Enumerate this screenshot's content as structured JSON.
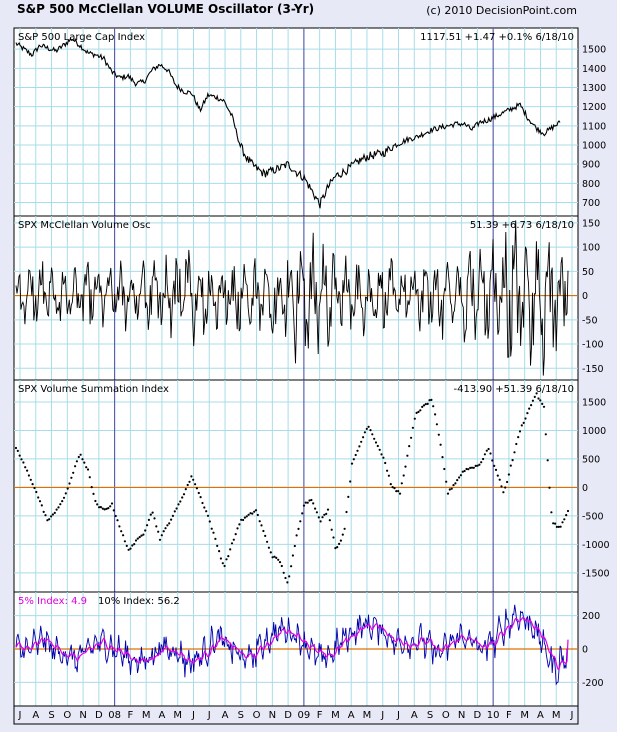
{
  "header": {
    "title": "S&P 500 McClellan VOLUME Oscillator (3-Yr)",
    "copyright": "(c) 2010 DecisionPoint.com"
  },
  "colors": {
    "background": "#e8e9f7",
    "plot_bg": "#ffffff",
    "grid": "#a9dce9",
    "vline": "#4a4aa8",
    "zero_line": "#e07000",
    "price": "#000000",
    "blue": "#0000aa",
    "magenta": "#e000e0"
  },
  "x_axis": {
    "months": [
      "J",
      "A",
      "S",
      "O",
      "N",
      "D",
      "08",
      "F",
      "M",
      "A",
      "M",
      "J",
      "J",
      "A",
      "S",
      "O",
      "N",
      "D",
      "09",
      "F",
      "M",
      "A",
      "M",
      "J",
      "J",
      "A",
      "S",
      "O",
      "N",
      "D",
      "10",
      "F",
      "M",
      "A",
      "M",
      "J"
    ]
  },
  "chart_data": [
    {
      "type": "line",
      "title": "S&P 500 Large Cap Index",
      "readout": "1117.51  +1.47  +0.1%  6/18/10",
      "ylim": [
        640,
        1600
      ],
      "yticks": [
        700,
        800,
        900,
        1000,
        1100,
        1200,
        1300,
        1400,
        1500
      ],
      "ytick_labels": [
        "700",
        "800",
        "900",
        "1000",
        "1100",
        "1200",
        "1300",
        "1400",
        "1500"
      ],
      "anchors": [
        [
          0,
          1530
        ],
        [
          2,
          1470
        ],
        [
          3,
          1520
        ],
        [
          5,
          1490
        ],
        [
          7,
          1555
        ],
        [
          8,
          1520
        ],
        [
          9,
          1480
        ],
        [
          10,
          1470
        ],
        [
          11,
          1450
        ],
        [
          12,
          1380
        ],
        [
          13,
          1350
        ],
        [
          14,
          1360
        ],
        [
          15,
          1320
        ],
        [
          16,
          1330
        ],
        [
          17,
          1390
        ],
        [
          18,
          1420
        ],
        [
          19,
          1390
        ],
        [
          20,
          1310
        ],
        [
          21,
          1280
        ],
        [
          22,
          1270
        ],
        [
          23,
          1180
        ],
        [
          24,
          1260
        ],
        [
          25,
          1250
        ],
        [
          26,
          1230
        ],
        [
          27,
          1150
        ],
        [
          28,
          1000
        ],
        [
          29,
          920
        ],
        [
          30,
          880
        ],
        [
          31,
          850
        ],
        [
          33,
          880
        ],
        [
          34,
          900
        ],
        [
          35,
          860
        ],
        [
          36,
          830
        ],
        [
          37,
          760
        ],
        [
          38,
          690
        ],
        [
          39,
          780
        ],
        [
          40,
          840
        ],
        [
          41,
          860
        ],
        [
          42,
          890
        ],
        [
          43,
          920
        ],
        [
          44,
          940
        ],
        [
          45,
          950
        ],
        [
          46,
          960
        ],
        [
          47,
          990
        ],
        [
          48,
          1010
        ],
        [
          49,
          1030
        ],
        [
          50,
          1040
        ],
        [
          51,
          1060
        ],
        [
          52,
          1080
        ],
        [
          53,
          1090
        ],
        [
          54,
          1100
        ],
        [
          55,
          1110
        ],
        [
          56,
          1110
        ],
        [
          57,
          1080
        ],
        [
          58,
          1120
        ],
        [
          59,
          1130
        ],
        [
          60,
          1150
        ],
        [
          61,
          1170
        ],
        [
          62,
          1190
        ],
        [
          63,
          1210
        ],
        [
          64,
          1140
        ],
        [
          65,
          1090
        ],
        [
          66,
          1060
        ],
        [
          67,
          1090
        ],
        [
          68,
          1117.51
        ]
      ]
    },
    {
      "type": "line",
      "title": "SPX McClellan Volume Osc",
      "readout": "51.39  +6.73  6/18/10",
      "ylim": [
        -170,
        160
      ],
      "yticks": [
        -150,
        -100,
        -50,
        0,
        50,
        100,
        150
      ],
      "ytick_labels": [
        "-150",
        "-100",
        "-50",
        "0",
        "50",
        "100",
        "150"
      ],
      "reference_line": 0,
      "amplitude": [
        60,
        60,
        65,
        70,
        75,
        70,
        65,
        70,
        70,
        65,
        60,
        60,
        55,
        60,
        65,
        70,
        75,
        80,
        85,
        90,
        100,
        95,
        90,
        85,
        80,
        75,
        70,
        75,
        80,
        80,
        80,
        85,
        90,
        100,
        110,
        120,
        125,
        120,
        110,
        100,
        90,
        85,
        80,
        75,
        70,
        75,
        70,
        65,
        60,
        65,
        70,
        75,
        80,
        85,
        90,
        100,
        110,
        115,
        120,
        130,
        140,
        150,
        145,
        140,
        145,
        150,
        140,
        130
      ],
      "last": 51.39
    },
    {
      "type": "scatter",
      "title": "SPX Volume Summation Index",
      "readout": "-413.90  +51.39  6/18/10",
      "ylim": [
        -1800,
        1850
      ],
      "yticks": [
        -1500,
        -1000,
        -500,
        0,
        500,
        1000,
        1500
      ],
      "ytick_labels": [
        "-1500",
        "-1000",
        "-500",
        "0",
        "500",
        "1000",
        "1500"
      ],
      "reference_line": 0,
      "anchors": [
        [
          0,
          700
        ],
        [
          2,
          100
        ],
        [
          4,
          -600
        ],
        [
          6,
          -200
        ],
        [
          8,
          600
        ],
        [
          9,
          300
        ],
        [
          10,
          -300
        ],
        [
          11,
          -400
        ],
        [
          12,
          -300
        ],
        [
          14,
          -1100
        ],
        [
          16,
          -800
        ],
        [
          17,
          -400
        ],
        [
          18,
          -900
        ],
        [
          20,
          -400
        ],
        [
          22,
          200
        ],
        [
          24,
          -500
        ],
        [
          26,
          -1400
        ],
        [
          28,
          -600
        ],
        [
          30,
          -400
        ],
        [
          32,
          -1200
        ],
        [
          33,
          -1300
        ],
        [
          34,
          -1700
        ],
        [
          35,
          -900
        ],
        [
          36,
          -300
        ],
        [
          37,
          -200
        ],
        [
          38,
          -600
        ],
        [
          39,
          -400
        ],
        [
          40,
          -1100
        ],
        [
          41,
          -800
        ],
        [
          42,
          400
        ],
        [
          44,
          1100
        ],
        [
          46,
          500
        ],
        [
          47,
          0
        ],
        [
          48,
          -100
        ],
        [
          50,
          1300
        ],
        [
          52,
          1550
        ],
        [
          53,
          800
        ],
        [
          54,
          -100
        ],
        [
          56,
          300
        ],
        [
          58,
          400
        ],
        [
          59,
          700
        ],
        [
          61,
          -100
        ],
        [
          63,
          1000
        ],
        [
          65,
          1650
        ],
        [
          66,
          1400
        ],
        [
          67,
          -600
        ],
        [
          68,
          -720
        ],
        [
          69,
          -413.9
        ]
      ]
    },
    {
      "type": "line",
      "series": [
        {
          "name": "5% Index: 4.9",
          "color": "#0000aa",
          "last": 4.9
        },
        {
          "name": "10% Index: 56.2",
          "color": "#e000e0",
          "last": 56.2
        }
      ],
      "ylim": [
        -330,
        330
      ],
      "yticks": [
        -200,
        0,
        200
      ],
      "ytick_labels": [
        "-200",
        "0",
        "200"
      ],
      "reference_line": 0,
      "bias": [
        0,
        0,
        30,
        60,
        0,
        -20,
        -40,
        -60,
        -30,
        20,
        40,
        20,
        -10,
        -40,
        -60,
        -80,
        -50,
        -20,
        10,
        0,
        -40,
        -80,
        -60,
        -20,
        40,
        60,
        20,
        -20,
        -60,
        -40,
        20,
        60,
        100,
        120,
        100,
        60,
        20,
        -40,
        -60,
        -20,
        40,
        80,
        120,
        140,
        140,
        120,
        80,
        40,
        40,
        40,
        60,
        20,
        -20,
        0,
        40,
        80,
        60,
        20,
        0,
        40,
        100,
        160,
        200,
        180,
        140,
        60,
        -40,
        -120,
        -60,
        30
      ],
      "last_blue": 4.9,
      "last_magenta": 56.2
    }
  ],
  "legend": {
    "five_label": "5% Index: 4.9",
    "ten_label": "10% Index: 56.2"
  }
}
